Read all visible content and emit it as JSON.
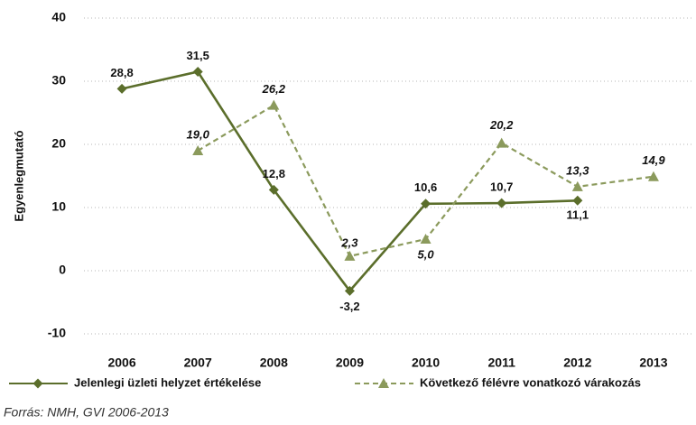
{
  "chart_data": {
    "type": "line",
    "y_label": "Egyenlegmutató",
    "source": "Forrás: NMH, GVI 2006-2013",
    "categories": [
      "2006",
      "2007",
      "2008",
      "2009",
      "2010",
      "2011",
      "2012",
      "2013"
    ],
    "series": [
      {
        "name": "Jelenlegi üzleti helyzet értékelése",
        "color": "#5b6e2b",
        "dash": false,
        "marker": "diamond",
        "values": [
          28.8,
          31.5,
          12.8,
          -3.2,
          10.6,
          10.7,
          11.1,
          null
        ],
        "value_labels": [
          "28,8",
          "31,5",
          "12,8",
          "-3,2",
          "10,6",
          "10,7",
          "11,1",
          null
        ]
      },
      {
        "name": "Következő félévre vonatkozó várakozás",
        "color": "#8b9a5c",
        "dash": true,
        "marker": "triangle",
        "values": [
          null,
          19.0,
          26.2,
          2.3,
          5.0,
          20.2,
          13.3,
          14.9
        ],
        "value_labels": [
          null,
          "19,0",
          "26,2",
          "2,3",
          "5,0",
          "20,2",
          "13,3",
          "14,9"
        ]
      }
    ],
    "ylim": [
      -10,
      40
    ],
    "yticks": [
      -10,
      0,
      10,
      20,
      30,
      40
    ],
    "grid": true
  }
}
